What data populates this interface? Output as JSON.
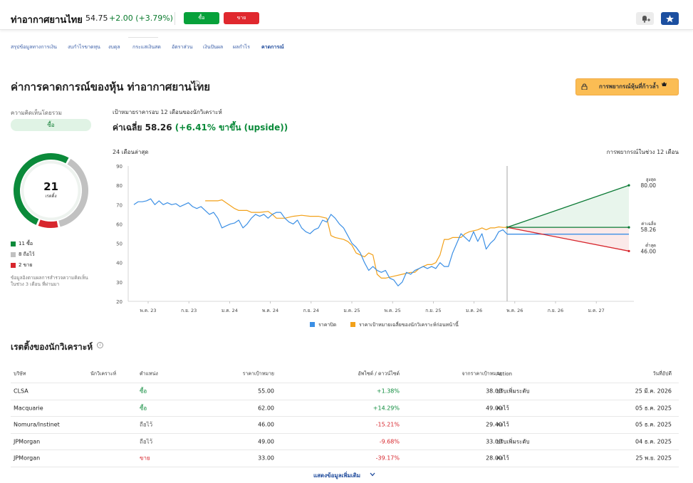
{
  "header": {
    "title": "ท่าอากาศยานไทย",
    "price": "54.75",
    "change": "+2.00 (+3.79%)",
    "buy_label": "ซื้อ",
    "sell_label": "ขาย"
  },
  "nav": {
    "tabs": [
      {
        "label": "สรุปข้อมูลทางการเงิน",
        "active": false
      },
      {
        "label": "งบกำไรขาดทุน",
        "active": false
      },
      {
        "label": "งบดุล",
        "active": false
      },
      {
        "label": "กระแสเงินสด",
        "active": false
      },
      {
        "label": "อัตราส่วน",
        "active": false
      },
      {
        "label": "เงินปันผล",
        "active": false
      },
      {
        "label": "ผลกำไร",
        "active": false
      },
      {
        "label": "คาดการณ์",
        "active": true
      }
    ]
  },
  "forecast": {
    "title": "ค่าการคาดการณ์ของหุ้น ท่าอากาศยานไทย",
    "premium_label": "การพยากรณ์หุ้นที่ก้าวล้ำ",
    "consensus_label": "ความคิดเห็นโดยรวม",
    "consensus_value": "ซื้อ",
    "donut_total": "21",
    "donut_sub": "เรตติ้ง",
    "legend": [
      {
        "label": "11 ซื้อ",
        "color": "#0b8a3a",
        "count": 11
      },
      {
        "label": "8 ถือไว้",
        "color": "#c1c1c1",
        "count": 8
      },
      {
        "label": "2 ขาย",
        "color": "#d7262d",
        "count": 2
      }
    ],
    "note": "ข้อมูลอิงตามผลการสำรวจความคิดเห็นในช่วง 3 เดือน ที่ผ่านมา",
    "target_label": "เป้าหมายราคารอบ 12 เดือนของนักวิเคราะห์",
    "avg_text": "ค่าเฉลี่ย 58.26",
    "avg_upside": "(+6.41% ขาขึ้น (upside))",
    "period_left": "24 เดือนล่าสุด",
    "period_right": "การพยากรณ์ในช่วง 12 เดือน"
  },
  "chart_data": {
    "type": "line",
    "ylim": [
      20,
      90
    ],
    "yticks": [
      20,
      30,
      40,
      50,
      60,
      70,
      80,
      90
    ],
    "xtick_labels": [
      "พ.ค. 23",
      "ก.ย. 23",
      "ม.ค. 24",
      "พ.ค. 24",
      "ก.ย. 24",
      "ม.ค. 25",
      "พ.ค. 25",
      "ก.ย. 25",
      "ม.ค. 26",
      "พ.ค. 26",
      "ก.ย. 26",
      "ม.ค. 27"
    ],
    "series": [
      {
        "name": "ราคาปิด",
        "color": "#3b8fe5",
        "points": [
          [
            0,
            70
          ],
          [
            1,
            71.5
          ],
          [
            2,
            71.5
          ],
          [
            3,
            72
          ],
          [
            4,
            73
          ],
          [
            5,
            70
          ],
          [
            6,
            72
          ],
          [
            7,
            70
          ],
          [
            8,
            71
          ],
          [
            9,
            70
          ],
          [
            10,
            70.5
          ],
          [
            11,
            69
          ],
          [
            12,
            70
          ],
          [
            13,
            71
          ],
          [
            14,
            69
          ],
          [
            15,
            68
          ],
          [
            16,
            69
          ],
          [
            17,
            67
          ],
          [
            18,
            65
          ],
          [
            19,
            66
          ],
          [
            20,
            63
          ],
          [
            21,
            58
          ],
          [
            22,
            59
          ],
          [
            23,
            60
          ],
          [
            24,
            60.5
          ],
          [
            25,
            62
          ],
          [
            26,
            58
          ],
          [
            27,
            60
          ],
          [
            28,
            63
          ],
          [
            29,
            65
          ],
          [
            30,
            64
          ],
          [
            31,
            65
          ],
          [
            32,
            63
          ],
          [
            33,
            65
          ],
          [
            34,
            66
          ],
          [
            35,
            66
          ],
          [
            36,
            63
          ],
          [
            37,
            61
          ],
          [
            38,
            60
          ],
          [
            39,
            62
          ],
          [
            40,
            58
          ],
          [
            41,
            56
          ],
          [
            42,
            55
          ],
          [
            43,
            57
          ],
          [
            44,
            58
          ],
          [
            45,
            62
          ],
          [
            46,
            61
          ],
          [
            47,
            65
          ],
          [
            48,
            63
          ],
          [
            49,
            60
          ],
          [
            50,
            58
          ],
          [
            51,
            54
          ],
          [
            52,
            50
          ],
          [
            53,
            48
          ],
          [
            54,
            45
          ],
          [
            55,
            40
          ],
          [
            56,
            36
          ],
          [
            57,
            38
          ],
          [
            58,
            36
          ],
          [
            59,
            35
          ],
          [
            60,
            36
          ],
          [
            61,
            32
          ],
          [
            62,
            31
          ],
          [
            63,
            28
          ],
          [
            64,
            30
          ],
          [
            65,
            35
          ],
          [
            66,
            34
          ],
          [
            67,
            36
          ],
          [
            68,
            37
          ],
          [
            69,
            38
          ],
          [
            70,
            37
          ],
          [
            71,
            38
          ],
          [
            72,
            37
          ],
          [
            73,
            40
          ],
          [
            74,
            38
          ],
          [
            75,
            38
          ],
          [
            76,
            45
          ],
          [
            77,
            50
          ],
          [
            78,
            55
          ],
          [
            79,
            53
          ],
          [
            80,
            51
          ],
          [
            81,
            56
          ],
          [
            82,
            51
          ],
          [
            83,
            55
          ],
          [
            84,
            47
          ],
          [
            85,
            50
          ],
          [
            86,
            52
          ],
          [
            87,
            56
          ],
          [
            88,
            57
          ],
          [
            89,
            54.75
          ]
        ]
      },
      {
        "name": "ราคาเป้าหมายเฉลี่ยของนักวิเคราะห์ก่อนหน้านี้",
        "color": "#f2a11a",
        "points": [
          [
            17,
            72
          ],
          [
            20,
            72
          ],
          [
            21,
            72.5
          ],
          [
            22,
            71
          ],
          [
            24,
            68
          ],
          [
            25,
            67
          ],
          [
            27,
            67
          ],
          [
            28,
            66
          ],
          [
            30,
            66
          ],
          [
            32,
            66.5
          ],
          [
            33,
            65
          ],
          [
            34,
            63
          ],
          [
            36,
            63
          ],
          [
            38,
            64
          ],
          [
            40,
            64.5
          ],
          [
            42,
            64
          ],
          [
            44,
            64
          ],
          [
            46,
            63
          ],
          [
            47,
            54
          ],
          [
            48,
            53
          ],
          [
            50,
            52
          ],
          [
            51,
            51
          ],
          [
            52,
            49
          ],
          [
            53,
            45
          ],
          [
            54,
            44
          ],
          [
            55,
            43
          ],
          [
            56,
            45
          ],
          [
            57,
            44
          ],
          [
            58,
            34
          ],
          [
            59,
            32
          ],
          [
            60,
            32
          ],
          [
            62,
            33
          ],
          [
            64,
            34
          ],
          [
            66,
            35
          ],
          [
            67,
            35
          ],
          [
            68,
            37
          ],
          [
            69,
            38
          ],
          [
            70,
            39
          ],
          [
            71,
            39
          ],
          [
            72,
            40
          ],
          [
            73,
            44
          ],
          [
            74,
            52
          ],
          [
            75,
            52
          ],
          [
            76,
            53
          ],
          [
            78,
            53
          ],
          [
            79,
            55
          ],
          [
            80,
            56
          ],
          [
            82,
            57
          ],
          [
            83,
            58
          ],
          [
            84,
            57
          ],
          [
            85,
            58
          ],
          [
            86,
            58
          ],
          [
            87,
            58.5
          ],
          [
            88,
            58.26
          ],
          [
            89,
            58.26
          ]
        ]
      }
    ],
    "forecast": {
      "current": 54.75,
      "high": 80.0,
      "average": 58.26,
      "low": 46.0,
      "high_label": "สูงสุด",
      "avg_label": "ค่าเฉลี่ย",
      "low_label": "ต่ำสุด",
      "high_text": "80.00",
      "avg_text": "58.26",
      "low_text": "46.00"
    },
    "legend": [
      "ราคาปิด",
      "ราคาเป้าหมายเฉลี่ยของนักวิเคราะห์ก่อนหน้านี้"
    ]
  },
  "ratings": {
    "title": "เรตติ้งของนักวิเคราะห์",
    "headers": [
      "บริษัท",
      "นักวิเคราะห์",
      "ตำแหน่ง",
      "ราคาเป้าหมาย",
      "อัพไซด์ / ดาวน์ไซด์",
      "จากราคาเป้าหมาย",
      "Action",
      "วันที่อัปดี"
    ],
    "rows": [
      {
        "firm": "CLSA",
        "rating": "ซื้อ",
        "rating_class": "buy",
        "target": "55.00",
        "updown": "+1.38%",
        "ud_class": "pos",
        "from": "38.00",
        "action": "ปรับเพิ่มระดับ",
        "date": "25 มี.ค. 2026"
      },
      {
        "firm": "Macquarie",
        "rating": "ซื้อ",
        "rating_class": "buy",
        "target": "62.00",
        "updown": "+14.29%",
        "ud_class": "pos",
        "from": "49.00",
        "action": "คงไว้",
        "date": "05 ธ.ค. 2025"
      },
      {
        "firm": "Nomura/Instinet",
        "rating": "ถือไว้",
        "rating_class": "hold",
        "target": "46.00",
        "updown": "-15.21%",
        "ud_class": "neg",
        "from": "29.40",
        "action": "คงไว้",
        "date": "05 ธ.ค. 2025"
      },
      {
        "firm": "JPMorgan",
        "rating": "ถือไว้",
        "rating_class": "hold",
        "target": "49.00",
        "updown": "-9.68%",
        "ud_class": "neg",
        "from": "33.00",
        "action": "ปรับเพิ่มระดับ",
        "date": "04 ธ.ค. 2025"
      },
      {
        "firm": "JPMorgan",
        "rating": "ขาย",
        "rating_class": "sell",
        "target": "33.00",
        "updown": "-39.17%",
        "ud_class": "neg",
        "from": "28.00",
        "action": "คงไว้",
        "date": "25 พ.ย. 2025"
      }
    ],
    "show_more": "แสดงข้อมูลเพิ่มเติม"
  }
}
